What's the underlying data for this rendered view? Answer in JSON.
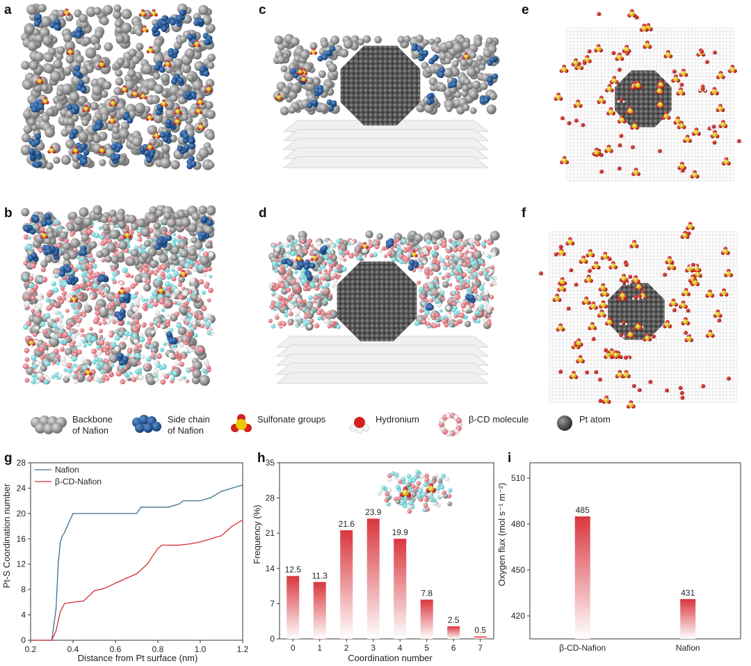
{
  "panels": {
    "a": "a",
    "b": "b",
    "c": "c",
    "d": "d",
    "e": "e",
    "f": "f",
    "g": "g",
    "h": "h",
    "i": "i"
  },
  "legend": [
    {
      "icon": "backbone-icon",
      "label": "Backbone\nof Nafion"
    },
    {
      "icon": "side-chain-icon",
      "label": "Side chain\nof Nafion"
    },
    {
      "icon": "sulfonate-icon",
      "label": "Sulfonate groups"
    },
    {
      "icon": "hydronium-icon",
      "label": "Hydronium"
    },
    {
      "icon": "beta-cd-icon",
      "label": "β-CD molecule"
    },
    {
      "icon": "pt-atom-icon",
      "label": "Pt atom"
    }
  ],
  "colors": {
    "backbone": "#8c8c8c",
    "side_chain": "#1f5aa0",
    "sulfur": "#e8c800",
    "oxygen": "#d42020",
    "hydrogen": "#f2f2f2",
    "cd_carbon": "#7fd8dc",
    "cd_oxygen": "#e07a80",
    "pt": "#555555",
    "nafion_line": "#3c6e8f",
    "cd_line": "#d42c2c",
    "bar_top": "#d9363e"
  },
  "chart_data": [
    {
      "type": "line",
      "xlabel": "Distance from Pt surface (nm)",
      "ylabel": "Pt-S Coordination number",
      "xlim": [
        0.2,
        1.2
      ],
      "ylim": [
        0,
        28
      ],
      "xticks": [
        "0.2",
        "0.4",
        "0.6",
        "0.8",
        "1.0",
        "1.2"
      ],
      "yticks": [
        "0",
        "4",
        "8",
        "12",
        "16",
        "20",
        "24",
        "28"
      ],
      "legend_position": "top-left",
      "series": [
        {
          "name": "Nafion",
          "x": [
            0.2,
            0.3,
            0.32,
            0.33,
            0.34,
            0.35,
            0.36,
            0.38,
            0.4,
            0.5,
            0.6,
            0.7,
            0.72,
            0.8,
            0.85,
            0.9,
            0.92,
            1.0,
            1.05,
            1.1,
            1.15,
            1.2
          ],
          "y": [
            0,
            0,
            5,
            12,
            15.5,
            16.5,
            17,
            18.5,
            20,
            20,
            20,
            20,
            21,
            21,
            21,
            21.5,
            22,
            22,
            22.5,
            23.5,
            24,
            24.5
          ]
        },
        {
          "name": "β-CD-Nafion",
          "x": [
            0.2,
            0.3,
            0.32,
            0.34,
            0.36,
            0.4,
            0.45,
            0.5,
            0.55,
            0.6,
            0.7,
            0.75,
            0.8,
            0.82,
            0.85,
            0.9,
            0.95,
            1.0,
            1.05,
            1.1,
            1.15,
            1.2
          ],
          "y": [
            0,
            0,
            1.5,
            4.5,
            5.8,
            6,
            6.2,
            7.8,
            8.2,
            9,
            10.5,
            12,
            14.5,
            15,
            15,
            15,
            15.2,
            15.5,
            16,
            16.5,
            18,
            19
          ]
        }
      ]
    },
    {
      "type": "bar",
      "xlabel": "Coordination number",
      "ylabel": "Frequency (%)",
      "ylim": [
        0,
        35
      ],
      "yticks": [
        "0",
        "7",
        "14",
        "21",
        "28",
        "35"
      ],
      "categories": [
        "0",
        "1",
        "2",
        "3",
        "4",
        "5",
        "6",
        "7"
      ],
      "values": [
        12.5,
        11.3,
        21.6,
        23.9,
        19.9,
        7.8,
        2.5,
        0.5
      ],
      "value_labels": [
        "12.5",
        "11.3",
        "21.6",
        "23.9",
        "19.9",
        "7.8",
        "2.5",
        "0.5"
      ]
    },
    {
      "type": "bar",
      "ylabel": "Oxygen flux (mol s⁻¹ m⁻²)",
      "ylim": [
        405,
        520
      ],
      "yticks": [
        "420",
        "450",
        "480",
        "510"
      ],
      "categories": [
        "β-CD-Nafion",
        "Nafion"
      ],
      "values": [
        485,
        431
      ],
      "value_labels": [
        "485",
        "431"
      ]
    }
  ]
}
